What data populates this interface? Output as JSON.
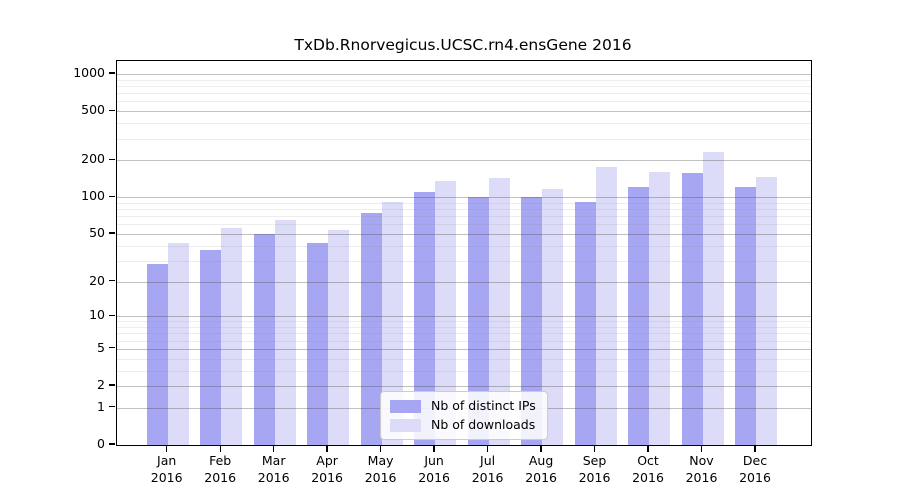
{
  "chart_data": {
    "type": "bar",
    "title": "TxDb.Rnorvegicus.UCSC.rn4.ensGene 2016",
    "categories": [
      "Jan",
      "Feb",
      "Mar",
      "Apr",
      "May",
      "Jun",
      "Jul",
      "Aug",
      "Sep",
      "Oct",
      "Nov",
      "Dec"
    ],
    "year_label": "2016",
    "series": [
      {
        "name": "Nb of distinct IPs",
        "color": "#a6a6f2",
        "values": [
          28,
          37,
          50,
          42,
          74,
          110,
          101,
          100,
          92,
          121,
          158,
          121
        ]
      },
      {
        "name": "Nb of downloads",
        "color": "#dcdcf8",
        "values": [
          42,
          56,
          65,
          54,
          92,
          135,
          144,
          117,
          176,
          160,
          235,
          145
        ]
      }
    ],
    "yscale": "log1p",
    "ylim": [
      0,
      1270
    ],
    "y_major_ticks": [
      1000,
      500,
      200,
      100,
      50,
      20,
      10,
      5,
      2,
      1,
      0
    ],
    "y_minor_gridlines": [
      3,
      4,
      6,
      7,
      8,
      9,
      30,
      40,
      60,
      70,
      80,
      90,
      300,
      400,
      600,
      700,
      800,
      900
    ],
    "grid": true,
    "legend_position": "lower center inside"
  },
  "colors": {
    "bar_distinct_ips": "#a6a6f2",
    "bar_downloads": "#dcdcf8",
    "grid_major": "#c2c2c2",
    "grid_minor": "#ececec",
    "axis": "#000000",
    "legend_border": "#cccccc"
  }
}
